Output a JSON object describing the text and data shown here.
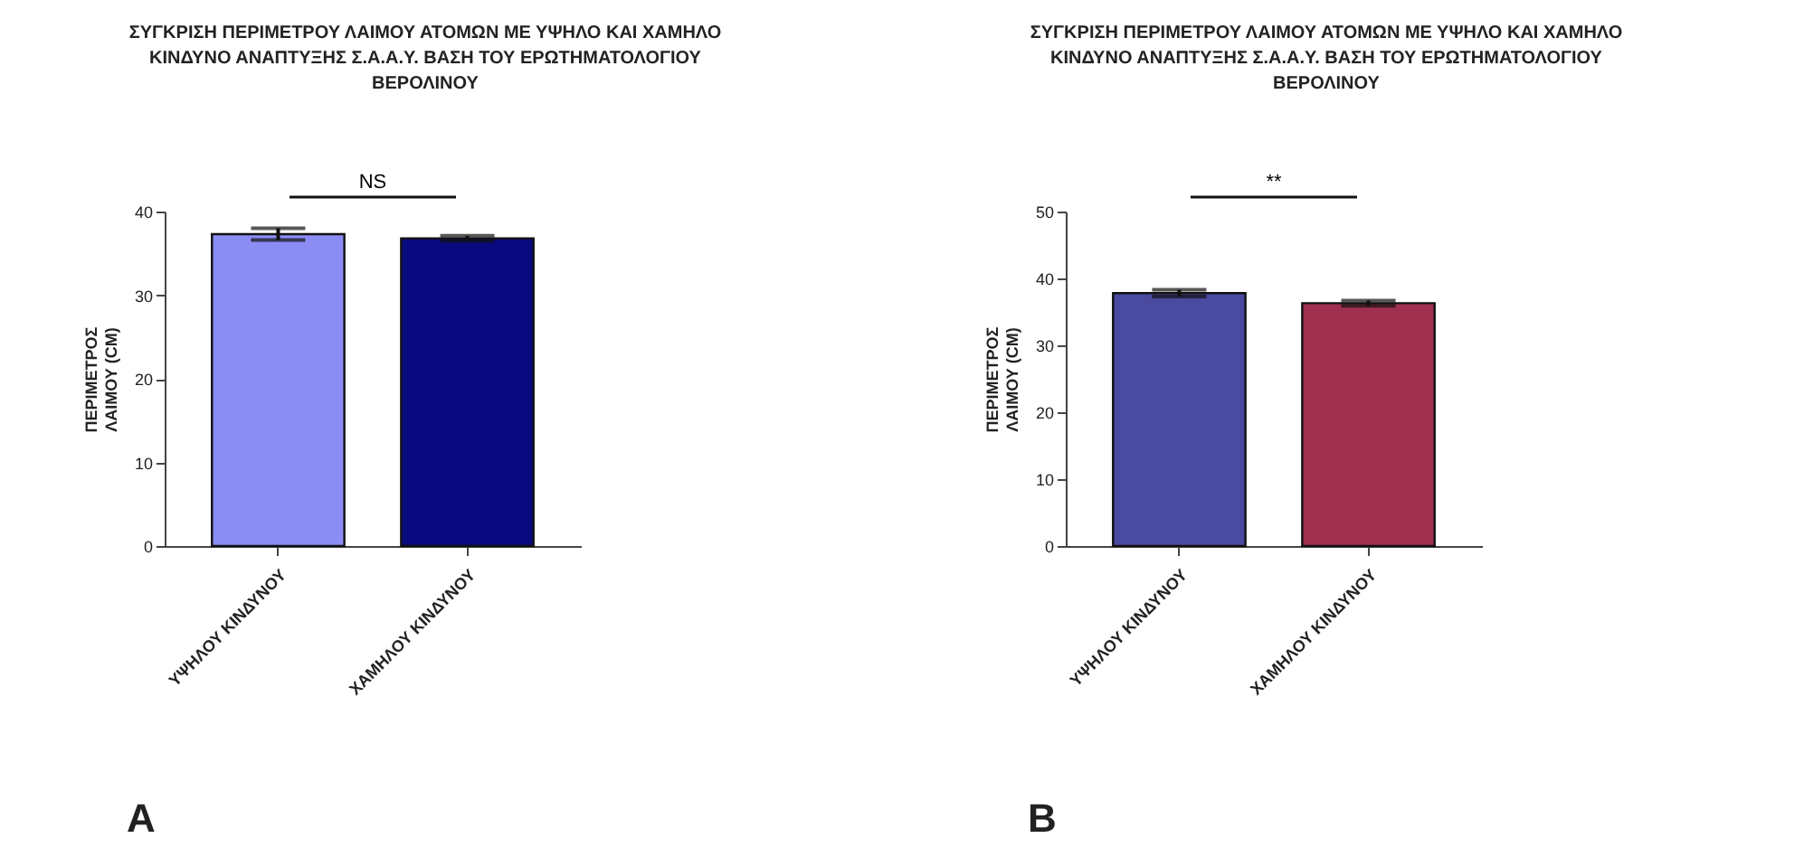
{
  "chart_data": [
    {
      "type": "bar",
      "title": "ΣΥΓΚΡΙΣΗ ΠΕΡΙΜΕΤΡΟΥ ΛΑΙΜΟΥ ΑΤΟΜΩΝ ΜΕ ΥΨΗΛΟ ΚΑΙ ΧΑΜΗΛΟ ΚΙΝΔΥΝΟ ΑΝΑΠΤΥΞΗΣ Σ.Α.Α.Υ. ΒΑΣΗ ΤΟΥ ΕΡΩΤΗΜΑΤΟΛΟΓΙΟΥ ΒΕΡΟΛΙΝΟΥ",
      "ylabel": "ΠΕΡΙΜΕΤΡΟΣ ΛΑΙΜΟΥ (CM)",
      "categories": [
        "ΥΨΗΛΟΥ ΚΙΝΔΥΝΟΥ",
        "ΧΑΜΗΛΟΥ ΚΙΝΔΥΝΟΥ"
      ],
      "values": [
        37.3,
        36.8
      ],
      "errors": [
        0.7,
        0.3
      ],
      "colors": [
        "#8c8cf5",
        "#0a0a80"
      ],
      "ylim": [
        0,
        40
      ],
      "yticks": [
        0,
        10,
        20,
        30,
        40
      ],
      "annotations": [
        "NS",
        "A"
      ]
    },
    {
      "type": "bar",
      "title": "ΣΥΓΚΡΙΣΗ ΠΕΡΙΜΕΤΡΟΥ ΛΑΙΜΟΥ ΑΤΟΜΩΝ ΜΕ ΥΨΗΛΟ ΚΑΙ ΧΑΜΗΛΟ ΚΙΝΔΥΝΟ ΑΝΑΠΤΥΞΗΣ Σ.Α.Α.Υ. ΒΑΣΗ ΤΟΥ ΕΡΩΤΗΜΑΤΟΛΟΓΙΟΥ ΒΕΡΟΛΙΝΟΥ",
      "ylabel": "ΠΕΡΙΜΕΤΡΟΣ ΛΑΙΜΟΥ (CM)",
      "categories": [
        "ΥΨΗΛΟΥ ΚΙΝΔΥΝΟΥ",
        "ΧΑΜΗΛΟΥ ΚΙΝΔΥΝΟΥ"
      ],
      "values": [
        37.8,
        36.3
      ],
      "errors": [
        0.5,
        0.4
      ],
      "colors": [
        "#4a4aa0",
        "#a03050"
      ],
      "ylim": [
        0,
        50
      ],
      "yticks": [
        0,
        10,
        20,
        30,
        40,
        50
      ],
      "annotations": [
        "**",
        "B"
      ]
    }
  ]
}
